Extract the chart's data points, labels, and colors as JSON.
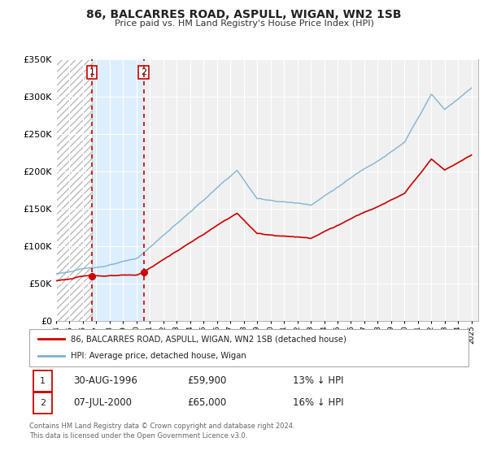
{
  "title": "86, BALCARRES ROAD, ASPULL, WIGAN, WN2 1SB",
  "subtitle": "Price paid vs. HM Land Registry's House Price Index (HPI)",
  "legend_label_red": "86, BALCARRES ROAD, ASPULL, WIGAN, WN2 1SB (detached house)",
  "legend_label_blue": "HPI: Average price, detached house, Wigan",
  "transaction1_date": "30-AUG-1996",
  "transaction1_price": "£59,900",
  "transaction1_hpi": "13% ↓ HPI",
  "transaction2_date": "07-JUL-2000",
  "transaction2_price": "£65,000",
  "transaction2_hpi": "16% ↓ HPI",
  "footer1": "Contains HM Land Registry data © Crown copyright and database right 2024.",
  "footer2": "This data is licensed under the Open Government Licence v3.0.",
  "ylim": [
    0,
    350000
  ],
  "yticks": [
    0,
    50000,
    100000,
    150000,
    200000,
    250000,
    300000,
    350000
  ],
  "xlim_start": 1994.0,
  "xlim_end": 2025.5,
  "red_color": "#cc0000",
  "blue_color": "#7ab0d4",
  "shaded_region_color": "#ddeeff",
  "transaction1_year": 1996.667,
  "transaction2_year": 2000.542,
  "background_color": "#ffffff",
  "plot_bg_color": "#f0f0f0"
}
